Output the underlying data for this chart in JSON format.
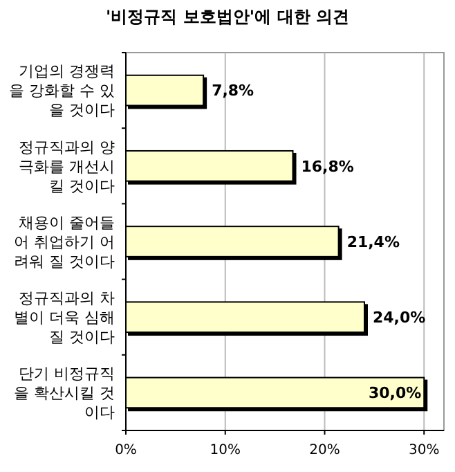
{
  "chart_data": {
    "type": "bar",
    "orientation": "horizontal",
    "title": "'비정규직 보호법안'에 대한 의견",
    "categories": [
      "기업의 경쟁력\n을 강화할 수 있\n을 것이다",
      "정규직과의 양\n극화를 개선시\n킬 것이다",
      "채용이 줄어들\n어 취업하기 어\n려워 질 것이다",
      "정규직과의 차\n별이 더욱 심해\n질 것이다",
      "단기 비정규직\n을 확산시킬 것\n이다"
    ],
    "values": [
      7.8,
      16.8,
      21.4,
      24.0,
      30.0
    ],
    "value_labels": [
      "7,8%",
      "16,8%",
      "21,4%",
      "24,0%",
      "30,0%"
    ],
    "color": "#ffffcc",
    "xlim": [
      0,
      32
    ],
    "xticks": [
      {
        "value": 0,
        "label": "0%"
      },
      {
        "value": 10,
        "label": "10%"
      },
      {
        "value": 20,
        "label": "20%"
      },
      {
        "value": 30,
        "label": "30%"
      }
    ],
    "grid": "x"
  }
}
